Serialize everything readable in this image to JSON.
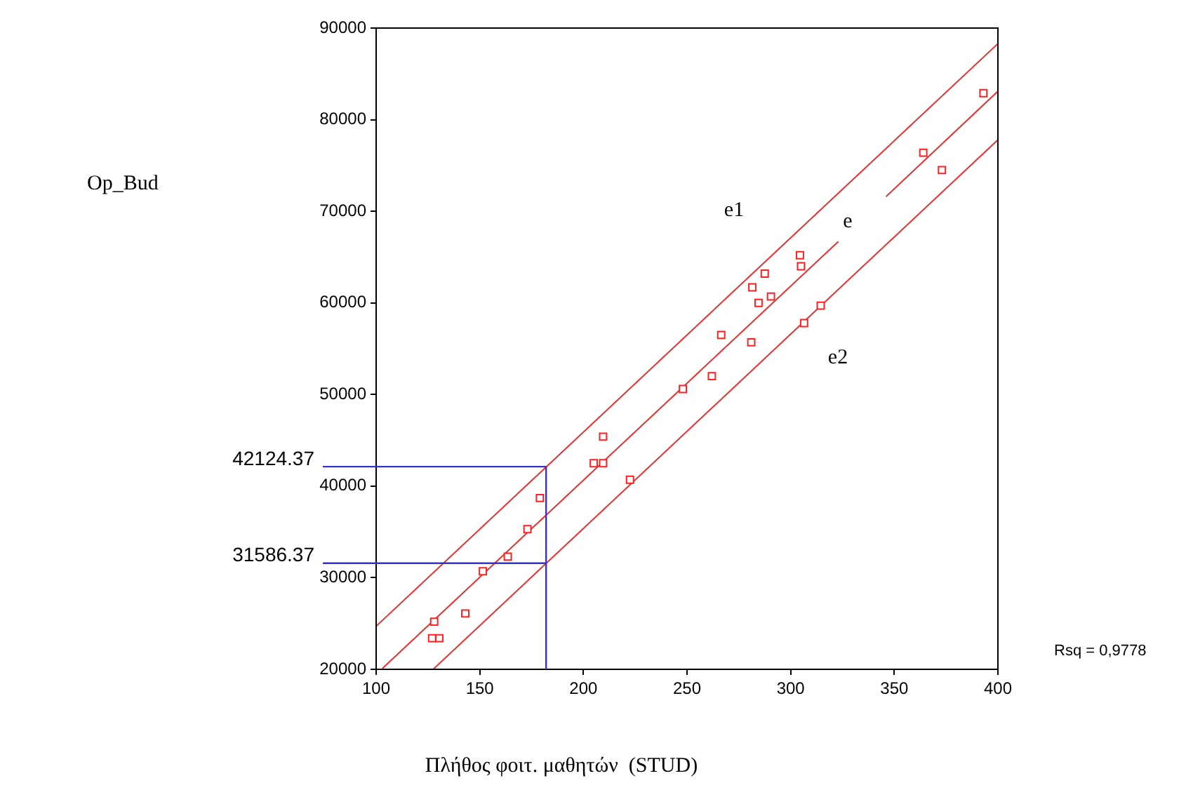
{
  "chart_data": {
    "type": "scatter",
    "xlabel": "Πλήθος φοιτ. μαθητών  (STUD)",
    "xlim": [
      100,
      400
    ],
    "xticks": [
      100,
      150,
      200,
      250,
      300,
      350,
      400
    ],
    "ylim": [
      20000,
      90000
    ],
    "yticks": [
      20000,
      30000,
      40000,
      50000,
      60000,
      70000,
      80000,
      90000
    ],
    "grid": false,
    "legend": false,
    "marker": "square",
    "series": [
      {
        "color": "#ff2020",
        "x": [
          128,
          127,
          130.5,
          143,
          151.5,
          163.5,
          173,
          179,
          205,
          209.5,
          209.5,
          222.5,
          248,
          262,
          266.5,
          281,
          281.5,
          284.5,
          287.5,
          290.5,
          304.5,
          305,
          306.5,
          314.5,
          364,
          373,
          393
        ],
        "values": [
          25200,
          23400,
          23400,
          26100,
          30700,
          32300,
          35300,
          38700,
          42500,
          42500,
          45400,
          40700,
          50600,
          52000,
          56500,
          55700,
          61700,
          60000,
          63200,
          60700,
          65200,
          64000,
          57800,
          59700,
          76400,
          74500,
          82900
        ]
      },
      {
        "type": "line",
        "color": "#e83030",
        "marker": "none",
        "x": [
          103,
          323,
          334,
          346,
          400
        ],
        "values": [
          20100,
          66700,
          null,
          71600,
          83100
        ]
      },
      {
        "type": "line",
        "color": "#e83030",
        "marker": "none",
        "x": [
          100,
          400
        ],
        "values": [
          24700,
          88300
        ]
      },
      {
        "type": "line",
        "color": "#e83030",
        "marker": "none",
        "x": [
          127.5,
          400
        ],
        "values": [
          20000,
          77800
        ]
      }
    ],
    "ref_lines": [
      {
        "axis": "y",
        "value": 42124.37,
        "label": "42124.37",
        "color": "#3333cc"
      },
      {
        "axis": "y",
        "value": 31586.37,
        "label": "31586.37",
        "color": "#3333cc"
      },
      {
        "axis": "x",
        "value": 182,
        "color": "#3333cc"
      }
    ],
    "annotations": [
      "Op_Bud",
      "e1",
      "e",
      "e2",
      "Rsq = 0,9778"
    ]
  }
}
